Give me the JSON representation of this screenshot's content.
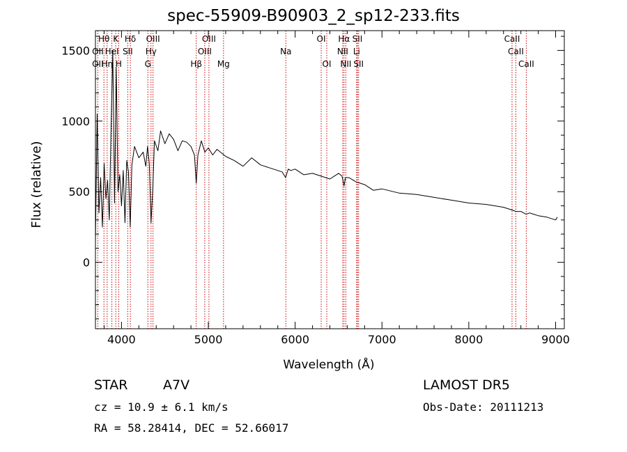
{
  "colors": {
    "axis": "#000000",
    "spectrum": "#000000",
    "lines": "#cc0000"
  },
  "chart_data": {
    "type": "line",
    "title": "spec-55909-B90903_2_sp12-233.fits",
    "xlabel": "Wavelength (Å)",
    "ylabel": "Flux (relative)",
    "xlim": [
      3700,
      9100
    ],
    "ylim": [
      -470,
      1640
    ],
    "x_ticks": [
      4000,
      5000,
      6000,
      7000,
      8000,
      9000
    ],
    "x_tick_labels": [
      "4000",
      "5000",
      "6000",
      "7000",
      "8000",
      "9000"
    ],
    "y_ticks": [
      0,
      500,
      1000,
      1500
    ],
    "y_tick_labels": [
      "0",
      "500",
      "1000",
      "1500"
    ],
    "grid": false,
    "series": [
      {
        "x": [
          3700,
          3720,
          3740,
          3760,
          3780,
          3800,
          3820,
          3840,
          3860,
          3880,
          3900,
          3920,
          3940,
          3960,
          3980,
          4000,
          4020,
          4040,
          4060,
          4080,
          4100,
          4120,
          4150,
          4200,
          4250,
          4280,
          4300,
          4320,
          4340,
          4360,
          4380,
          4420,
          4450,
          4500,
          4550,
          4600,
          4650,
          4700,
          4750,
          4800,
          4840,
          4861,
          4880,
          4920,
          4960,
          5000,
          5050,
          5100,
          5200,
          5300,
          5400,
          5500,
          5600,
          5700,
          5800,
          5850,
          5890,
          5920,
          5950,
          6000,
          6100,
          6200,
          6300,
          6400,
          6500,
          6540,
          6563,
          6580,
          6620,
          6700,
          6800,
          6900,
          7000,
          7200,
          7400,
          7600,
          7800,
          8000,
          8200,
          8400,
          8500,
          8542,
          8600,
          8662,
          8700,
          8800,
          8900,
          9000,
          9020
        ],
        "values": [
          150,
          1050,
          350,
          600,
          250,
          700,
          450,
          580,
          300,
          950,
          1500,
          420,
          1380,
          500,
          620,
          400,
          650,
          280,
          720,
          640,
          250,
          690,
          820,
          740,
          780,
          680,
          820,
          700,
          280,
          520,
          860,
          790,
          930,
          840,
          910,
          870,
          790,
          860,
          850,
          820,
          760,
          560,
          760,
          860,
          780,
          810,
          760,
          800,
          750,
          720,
          680,
          740,
          690,
          670,
          650,
          640,
          600,
          660,
          650,
          660,
          620,
          630,
          610,
          590,
          630,
          610,
          540,
          600,
          600,
          570,
          550,
          510,
          520,
          490,
          480,
          460,
          440,
          420,
          410,
          390,
          370,
          360,
          360,
          340,
          350,
          330,
          320,
          300,
          320
        ]
      }
    ],
    "lines": [
      {
        "label": "OII",
        "x": 3727,
        "row": 1
      },
      {
        "label": "OII",
        "x": 3727,
        "row": 2
      },
      {
        "label": "Hθ",
        "x": 3798,
        "row": 0
      },
      {
        "label": "Hη",
        "x": 3835,
        "row": 2
      },
      {
        "label": "HeI",
        "x": 3889,
        "row": 1
      },
      {
        "label": "K",
        "x": 3934,
        "row": 0
      },
      {
        "label": "H",
        "x": 3968,
        "row": 2
      },
      {
        "label": "Hδ",
        "x": 4102,
        "row": 0
      },
      {
        "label": "SII",
        "x": 4072,
        "row": 1
      },
      {
        "label": "OIII",
        "x": 4363,
        "row": 0
      },
      {
        "label": "Hγ",
        "x": 4340,
        "row": 1
      },
      {
        "label": "G",
        "x": 4304,
        "row": 2
      },
      {
        "label": "Hβ",
        "x": 4861,
        "row": 2
      },
      {
        "label": "OIII",
        "x": 5007,
        "row": 0
      },
      {
        "label": "OIII",
        "x": 4959,
        "row": 1
      },
      {
        "label": "Mg",
        "x": 5175,
        "row": 2
      },
      {
        "label": "Na",
        "x": 5893,
        "row": 1
      },
      {
        "label": "OI",
        "x": 6300,
        "row": 0
      },
      {
        "label": "OI",
        "x": 6364,
        "row": 2
      },
      {
        "label": "Hα",
        "x": 6563,
        "row": 0
      },
      {
        "label": "NII",
        "x": 6548,
        "row": 1
      },
      {
        "label": "NII",
        "x": 6584,
        "row": 2
      },
      {
        "label": "SII",
        "x": 6717,
        "row": 0
      },
      {
        "label": "Li",
        "x": 6708,
        "row": 1
      },
      {
        "label": "SII",
        "x": 6731,
        "row": 2
      },
      {
        "label": "CaII",
        "x": 8498,
        "row": 0
      },
      {
        "label": "CaII",
        "x": 8542,
        "row": 1
      },
      {
        "label": "CaII",
        "x": 8662,
        "row": 2
      }
    ]
  },
  "info": {
    "object_class": "STAR",
    "subclass": "A7V",
    "survey": "LAMOST DR5",
    "cz": "cz = 10.9 ± 6.1 km/s",
    "obs_date": "Obs-Date: 20111213",
    "coords": "RA =  58.28414, DEC =  52.66017"
  }
}
